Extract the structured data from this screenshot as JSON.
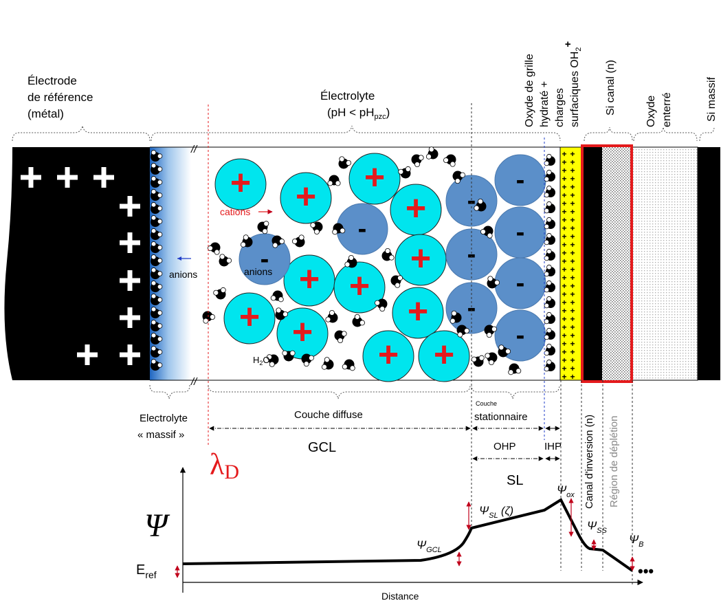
{
  "labels": {
    "electrode_l1": "Électrode",
    "electrode_l2": "de référence",
    "electrode_l3": "(métal)",
    "electrolyte_l1": "Électrolyte",
    "electrolyte_l2_a": "(pH < pH",
    "electrolyte_l2_sub": "pzc",
    "electrolyte_l2_b": ")",
    "oxide_hydrated_l1": "Oxyde de grille",
    "oxide_hydrated_l2": "hydraté +",
    "surface_charges_l1": "charges",
    "surface_charges_l2": "surfaciques OH",
    "surface_charges_sub": "2",
    "surface_charges_sup": "+",
    "si_channel": "Si canal (n)",
    "buried_oxide_l1": "Oxyde",
    "buried_oxide_l2": "enterré",
    "bulk_si": "Si massif",
    "cations": "cations",
    "anions_left": "anions",
    "anions_center": "anions",
    "water_a": "H",
    "water_sub": "2",
    "water_b": "O",
    "bulk_electrolyte_l1": "Electrolyte",
    "bulk_electrolyte_l2": "« massif »",
    "diffuse_layer": "Couche diffuse",
    "stationary_small": "Couche",
    "stationary": "stationnaire",
    "gcl": "GCL",
    "ohp": "OHP",
    "ihp": "IHP",
    "sl": "SL",
    "debye_main": "λ",
    "debye_sub": "D",
    "inversion_channel": "Canal d'inversion (n)",
    "depletion_region": "Région de déplétion",
    "psi_axis": "Ψ",
    "e_ref_main": "E",
    "e_ref_sub": "ref",
    "psi_gcl_main": "Ψ",
    "psi_gcl_sub": "GCL",
    "psi_sl_main": "Ψ",
    "psi_sl_sub": "SL",
    "psi_sl_zeta": " (ζ)",
    "psi_ox_main": "Ψ",
    "psi_ox_sub": "ox",
    "psi_ss_main": "Ψ",
    "psi_ss_sub": "SS",
    "psi_b_main": "Ψ",
    "psi_b_sub": "B",
    "ellipsis": "•••",
    "distance": "Distance",
    "break_mark": "//",
    "plus": "+",
    "minus": "-"
  },
  "colors": {
    "electrode": "#000000",
    "cation": "#00e5ee",
    "anion": "#5b8fc9",
    "cation_sign": "#e41a1c",
    "surface_charge_layer": "#ffff00",
    "lambda_red": "#e41a1c",
    "channel_outline": "#e41a1c",
    "ihp_line": "#1f3cc8",
    "arrow_blue": "#1f3cc8",
    "double_arrow": "#c0001a"
  }
}
